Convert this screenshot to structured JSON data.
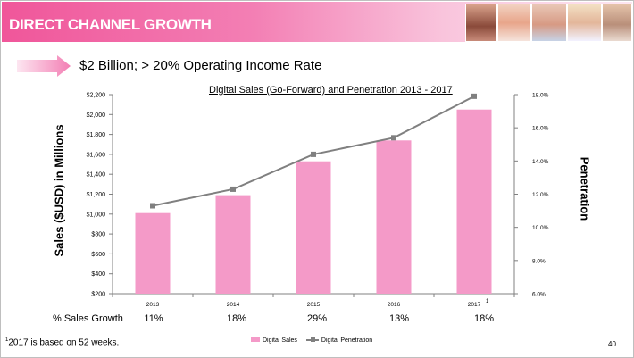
{
  "header": {
    "title": "DIRECT CHANNEL GROWTH",
    "photos": [
      "model-photo-1",
      "model-photo-2",
      "model-photo-3",
      "model-photo-4",
      "model-photo-5"
    ]
  },
  "subtitle": "$2 Billion; > 20% Operating Income Rate",
  "chart_data": {
    "type": "bar",
    "title": "Digital Sales (Go-Forward) and Penetration 2013 - 2017",
    "categories": [
      "2013",
      "2014",
      "2015",
      "2016",
      "2017"
    ],
    "last_category_marker": "1",
    "series": [
      {
        "name": "Digital Sales",
        "type": "bar",
        "axis": "left",
        "color": "#f49ac8",
        "values": [
          1010,
          1190,
          1530,
          1740,
          2050
        ]
      },
      {
        "name": "Digital Penetration",
        "type": "line",
        "axis": "right",
        "color": "#808080",
        "values": [
          11.3,
          12.3,
          14.4,
          15.4,
          17.9
        ]
      }
    ],
    "ylabel": "Sales ($USD) in Millions",
    "y2label": "Penetration",
    "ylim": [
      200,
      2200
    ],
    "yticks": [
      200,
      400,
      600,
      800,
      1000,
      1200,
      1400,
      1600,
      1800,
      2000,
      2200
    ],
    "ytick_labels": [
      "$200",
      "$400",
      "$600",
      "$800",
      "$1,000",
      "$1,200",
      "$1,400",
      "$1,600",
      "$1,800",
      "$2,000",
      "$2,200"
    ],
    "y2lim": [
      6,
      18
    ],
    "y2ticks": [
      6,
      8,
      10,
      12,
      14,
      16,
      18
    ],
    "y2tick_labels": [
      "6.0%",
      "8.0%",
      "10.0%",
      "12.0%",
      "14.0%",
      "16.0%",
      "18.0%"
    ],
    "legend": "bottom-center",
    "grid": false
  },
  "growth": {
    "label": "% Sales Growth",
    "values": [
      "11%",
      "18%",
      "29%",
      "13%",
      "18%"
    ]
  },
  "footnote": {
    "marker": "1",
    "text": "2017 is based on 52 weeks."
  },
  "legend_labels": {
    "bar": "Digital Sales",
    "line": "Digital Penetration"
  },
  "page_number": "40",
  "colors": {
    "accent": "#f0569a",
    "bar": "#f49ac8",
    "line": "#808080"
  }
}
